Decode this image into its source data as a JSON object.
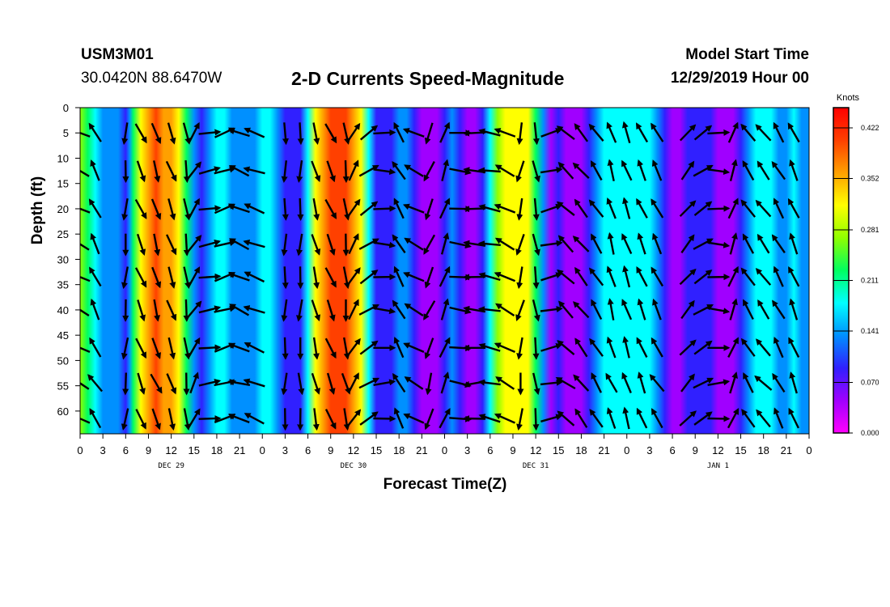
{
  "header": {
    "station": "USM3M01",
    "coords": "30.0420N 88.6470W",
    "title": "2-D Currents Speed-Magnitude",
    "model_start_label": "Model Start Time",
    "model_start_value": "12/29/2019 Hour 00"
  },
  "chart_data": {
    "type": "heatmap",
    "title": "2-D Currents Speed-Magnitude",
    "xlabel": "Forecast Time(Z)",
    "ylabel": "Depth (ft)",
    "x_range_hours": [
      0,
      96
    ],
    "x_tick_step_hours": 3,
    "x_tick_labels": [
      "0",
      "3",
      "6",
      "9",
      "12",
      "15",
      "18",
      "21",
      "0",
      "3",
      "6",
      "9",
      "12",
      "15",
      "18",
      "21",
      "0",
      "3",
      "6",
      "9",
      "12",
      "15",
      "18",
      "21",
      "0",
      "3",
      "6",
      "9",
      "12",
      "15",
      "18",
      "21",
      "0"
    ],
    "date_labels": [
      {
        "hour": 12,
        "text": "DEC 29"
      },
      {
        "hour": 36,
        "text": "DEC 30"
      },
      {
        "hour": 60,
        "text": "DEC 31"
      },
      {
        "hour": 84,
        "text": "JAN 1"
      }
    ],
    "y_range_ft": [
      0,
      64.5
    ],
    "y_ticks": [
      0,
      5,
      10,
      15,
      20,
      25,
      30,
      35,
      40,
      45,
      50,
      55,
      60
    ],
    "y_tick_labels": [
      "0",
      "5",
      "10",
      "15",
      "20",
      "25",
      "30",
      "35",
      "40",
      "45",
      "50",
      "55",
      "60"
    ],
    "colorbar": {
      "title": "Knots",
      "min": 0.0,
      "max": 0.45,
      "tick_labels": [
        "0.422",
        "0.352",
        "0.281",
        "0.211",
        "0.141",
        "0.070",
        "0.000"
      ],
      "tick_values": [
        0.422,
        0.352,
        0.281,
        0.211,
        0.141,
        0.07,
        0.0
      ],
      "colors": [
        "#ff00ff",
        "#a000ff",
        "#3020ff",
        "#0090ff",
        "#00ffff",
        "#00ff60",
        "#90ff00",
        "#ffff00",
        "#ffa000",
        "#ff4000",
        "#ff0000"
      ]
    },
    "speed_profile_by_hour": [
      [
        0,
        0.25
      ],
      [
        1,
        0.22
      ],
      [
        2,
        0.17
      ],
      [
        3,
        0.13
      ],
      [
        4,
        0.14
      ],
      [
        5,
        0.12
      ],
      [
        6,
        0.09
      ],
      [
        6.5,
        0.13
      ],
      [
        7,
        0.24
      ],
      [
        8,
        0.33
      ],
      [
        9,
        0.37
      ],
      [
        10,
        0.39
      ],
      [
        11,
        0.38
      ],
      [
        12,
        0.36
      ],
      [
        13,
        0.31
      ],
      [
        14,
        0.22
      ],
      [
        15,
        0.12
      ],
      [
        16,
        0.09
      ],
      [
        17,
        0.12
      ],
      [
        18,
        0.18
      ],
      [
        19,
        0.17
      ],
      [
        20,
        0.14
      ],
      [
        21,
        0.13
      ],
      [
        22,
        0.12
      ],
      [
        23,
        0.14
      ],
      [
        24,
        0.18
      ],
      [
        25,
        0.17
      ],
      [
        26,
        0.13
      ],
      [
        27,
        0.1
      ],
      [
        28,
        0.07
      ],
      [
        29,
        0.1
      ],
      [
        30,
        0.2
      ],
      [
        31,
        0.3
      ],
      [
        32,
        0.37
      ],
      [
        33,
        0.4
      ],
      [
        34,
        0.41
      ],
      [
        35,
        0.39
      ],
      [
        36,
        0.36
      ],
      [
        37,
        0.31
      ],
      [
        38,
        0.2
      ],
      [
        39,
        0.1
      ],
      [
        40,
        0.07
      ],
      [
        41,
        0.09
      ],
      [
        42,
        0.12
      ],
      [
        43,
        0.13
      ],
      [
        44,
        0.1
      ],
      [
        45,
        0.06
      ],
      [
        46,
        0.04
      ],
      [
        47,
        0.06
      ],
      [
        48,
        0.1
      ],
      [
        49,
        0.14
      ],
      [
        50,
        0.1
      ],
      [
        51,
        0.05
      ],
      [
        52,
        0.06
      ],
      [
        53,
        0.1
      ],
      [
        54,
        0.19
      ],
      [
        55,
        0.27
      ],
      [
        56,
        0.32
      ],
      [
        57,
        0.33
      ],
      [
        58,
        0.33
      ],
      [
        59,
        0.3
      ],
      [
        60,
        0.22
      ],
      [
        61,
        0.12
      ],
      [
        62,
        0.06
      ],
      [
        63,
        0.07
      ],
      [
        64,
        0.04
      ],
      [
        65,
        0.03
      ],
      [
        66,
        0.06
      ],
      [
        67,
        0.1
      ],
      [
        68,
        0.15
      ],
      [
        69,
        0.18
      ],
      [
        70,
        0.2
      ],
      [
        71,
        0.19
      ],
      [
        72,
        0.17
      ],
      [
        73,
        0.17
      ],
      [
        74,
        0.18
      ],
      [
        75,
        0.17
      ],
      [
        76,
        0.14
      ],
      [
        77,
        0.1
      ],
      [
        78,
        0.06
      ],
      [
        79,
        0.05
      ],
      [
        80,
        0.08
      ],
      [
        81,
        0.11
      ],
      [
        82,
        0.1
      ],
      [
        83,
        0.08
      ],
      [
        84,
        0.05
      ],
      [
        85,
        0.04
      ],
      [
        86,
        0.06
      ],
      [
        87,
        0.09
      ],
      [
        88,
        0.12
      ],
      [
        89,
        0.16
      ],
      [
        90,
        0.17
      ],
      [
        91,
        0.16
      ],
      [
        92,
        0.15
      ],
      [
        93,
        0.15
      ],
      [
        94,
        0.16
      ],
      [
        95,
        0.14
      ],
      [
        96,
        0.12
      ]
    ],
    "vector_columns": [
      {
        "hour": 0,
        "dir": 300
      },
      {
        "hour": 2,
        "dir": 330
      },
      {
        "hour": 6,
        "dir": 185
      },
      {
        "hour": 8,
        "dir": 160
      },
      {
        "hour": 10,
        "dir": 160
      },
      {
        "hour": 12,
        "dir": 160
      },
      {
        "hour": 14,
        "dir": 175
      },
      {
        "hour": 15,
        "dir": 30
      },
      {
        "hour": 17,
        "dir": 80
      },
      {
        "hour": 19,
        "dir": 75
      },
      {
        "hour": 21,
        "dir": 290
      },
      {
        "hour": 23,
        "dir": 290
      },
      {
        "hour": 27,
        "dir": 185
      },
      {
        "hour": 29,
        "dir": 180
      },
      {
        "hour": 31,
        "dir": 165
      },
      {
        "hour": 33,
        "dir": 160
      },
      {
        "hour": 35,
        "dir": 170
      },
      {
        "hour": 36,
        "dir": 30
      },
      {
        "hour": 38,
        "dir": 60
      },
      {
        "hour": 40,
        "dir": 90
      },
      {
        "hour": 42,
        "dir": 330
      },
      {
        "hour": 44,
        "dir": 300
      },
      {
        "hour": 46,
        "dir": 200
      },
      {
        "hour": 48,
        "dir": 20
      },
      {
        "hour": 50,
        "dir": 100
      },
      {
        "hour": 52,
        "dir": 270
      },
      {
        "hour": 54,
        "dir": 280
      },
      {
        "hour": 56,
        "dir": 300
      },
      {
        "hour": 58,
        "dir": 190
      },
      {
        "hour": 60,
        "dir": 170
      },
      {
        "hour": 62,
        "dir": 80
      },
      {
        "hour": 64,
        "dir": 310
      },
      {
        "hour": 66,
        "dir": 320
      },
      {
        "hour": 68,
        "dir": 330
      },
      {
        "hour": 70,
        "dir": 340
      },
      {
        "hour": 72,
        "dir": 340
      },
      {
        "hour": 74,
        "dir": 340
      },
      {
        "hour": 76,
        "dir": 330
      },
      {
        "hour": 80,
        "dir": 40
      },
      {
        "hour": 82,
        "dir": 60
      },
      {
        "hour": 84,
        "dir": 90
      },
      {
        "hour": 86,
        "dir": 20
      },
      {
        "hour": 88,
        "dir": 330
      },
      {
        "hour": 90,
        "dir": 320
      },
      {
        "hour": 92,
        "dir": 330
      },
      {
        "hour": 94,
        "dir": 340
      }
    ],
    "vector_depths_ft": [
      5,
      12.5,
      20,
      27,
      33.5,
      40,
      47.5,
      54.5,
      61.5
    ]
  }
}
